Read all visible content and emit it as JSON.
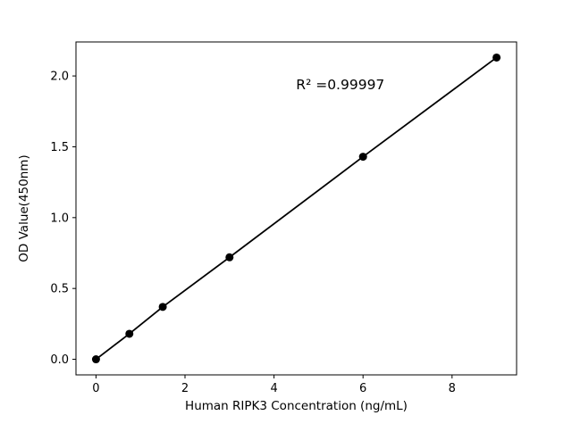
{
  "chart_data": {
    "type": "scatter",
    "title": "",
    "xlabel": "Human RIPK3 Concentration (ng/mL)",
    "ylabel": "OD Value(450nm)",
    "x": [
      0,
      0.75,
      1.5,
      3,
      6,
      9
    ],
    "y": [
      0.0,
      0.18,
      0.37,
      0.72,
      1.43,
      2.13
    ],
    "xlim": [
      -0.45,
      9.45
    ],
    "ylim": [
      -0.11,
      2.24
    ],
    "xticks": [
      0,
      2,
      4,
      6,
      8
    ],
    "xtick_labels": [
      "0",
      "2",
      "4",
      "6",
      "8"
    ],
    "yticks": [
      0.0,
      0.5,
      1.0,
      1.5,
      2.0
    ],
    "ytick_labels": [
      "0.0",
      "0.5",
      "1.0",
      "1.5",
      "2.0"
    ],
    "annotation": {
      "text": "R² =0.99997",
      "fx": 0.6,
      "fy": 0.142
    },
    "grid": false,
    "legend": null,
    "line_connects_points": true,
    "colors": {
      "line": "#000000",
      "marker": "#000000",
      "axis": "#000000",
      "background": "#ffffff"
    }
  }
}
